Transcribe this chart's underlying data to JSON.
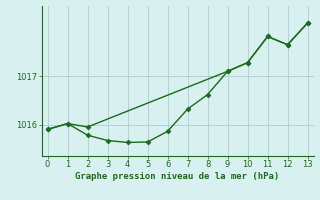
{
  "line1_x": [
    0,
    1,
    2,
    9,
    10,
    11,
    12,
    13
  ],
  "line1_y": [
    1015.9,
    1016.02,
    1015.95,
    1017.1,
    1017.28,
    1017.82,
    1017.65,
    1018.1
  ],
  "line2_x": [
    0,
    1,
    2,
    3,
    4,
    5,
    6,
    7,
    8,
    9,
    10,
    11,
    12,
    13
  ],
  "line2_y": [
    1015.9,
    1016.02,
    1015.78,
    1015.67,
    1015.63,
    1015.64,
    1015.86,
    1016.32,
    1016.62,
    1017.1,
    1017.28,
    1017.82,
    1017.65,
    1018.1
  ],
  "line_color": "#1a6b1a",
  "marker": "D",
  "marker_size": 2.5,
  "xlim": [
    -0.3,
    13.3
  ],
  "ylim": [
    1015.35,
    1018.45
  ],
  "yticks": [
    1016,
    1017
  ],
  "xticks": [
    0,
    1,
    2,
    3,
    4,
    5,
    6,
    7,
    8,
    9,
    10,
    11,
    12,
    13
  ],
  "xlabel": "Graphe pression niveau de la mer (hPa)",
  "bg_color": "#d9f0f0",
  "grid_color": "#b0d4d4",
  "tick_color": "#1a6b1a",
  "xlabel_color": "#1a6b1a",
  "linewidth": 1.0
}
